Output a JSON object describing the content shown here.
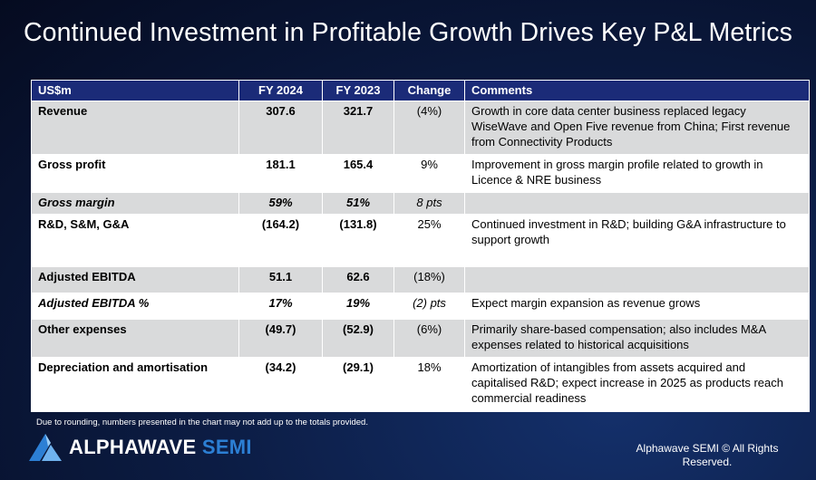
{
  "title": "Continued Investment in Profitable Growth Drives Key P&L Metrics",
  "table": {
    "headers": [
      "US$m",
      "FY 2024",
      "FY 2023",
      "Change",
      "Comments"
    ],
    "rows": [
      {
        "metric": "Revenue",
        "fy2024": "307.6",
        "fy2023": "321.7",
        "change": "(4%)",
        "comment": "Growth in core data center business replaced legacy WiseWave and Open Five revenue from China; First revenue from Connectivity Products"
      },
      {
        "metric": "Gross profit",
        "fy2024": "181.1",
        "fy2023": "165.4",
        "change": "9%",
        "comment": "Improvement in gross margin profile related to growth in Licence & NRE business"
      },
      {
        "metric": "Gross margin",
        "fy2024": "59%",
        "fy2023": "51%",
        "change": "8 pts",
        "comment": ""
      },
      {
        "metric": "R&D, S&M, G&A",
        "fy2024": "(164.2)",
        "fy2023": "(131.8)",
        "change": "25%",
        "comment": "Continued investment in R&D; building G&A infrastructure to support growth"
      },
      {
        "metric": "Adjusted EBITDA",
        "fy2024": "51.1",
        "fy2023": "62.6",
        "change": "(18%)",
        "comment": ""
      },
      {
        "metric": "Adjusted EBITDA %",
        "fy2024": "17%",
        "fy2023": "19%",
        "change": "(2) pts",
        "comment": "Expect margin expansion as revenue grows"
      },
      {
        "metric": "Other expenses",
        "fy2024": "(49.7)",
        "fy2023": "(52.9)",
        "change": "(6%)",
        "comment": "Primarily share-based compensation; also includes M&A expenses related to historical acquisitions"
      },
      {
        "metric": "Depreciation and amortisation",
        "fy2024": "(34.2)",
        "fy2023": "(29.1)",
        "change": "18%",
        "comment": "Amortization of intangibles from assets acquired and capitalised R&D; expect increase in 2025 as products reach commercial readiness"
      }
    ]
  },
  "footnote": "Due to rounding, numbers presented in the chart may not add up to the totals provided.",
  "logo": {
    "word1": "ALPHAWAVE",
    "word2": "SEMI",
    "icon": "alphawave-logo-icon"
  },
  "copyright": "Alphawave SEMI © All Rights Reserved.",
  "colors": {
    "header_bg": "#1b2b78",
    "row_shade": "#d9dadb",
    "brand_blue": "#2c7fd4"
  }
}
